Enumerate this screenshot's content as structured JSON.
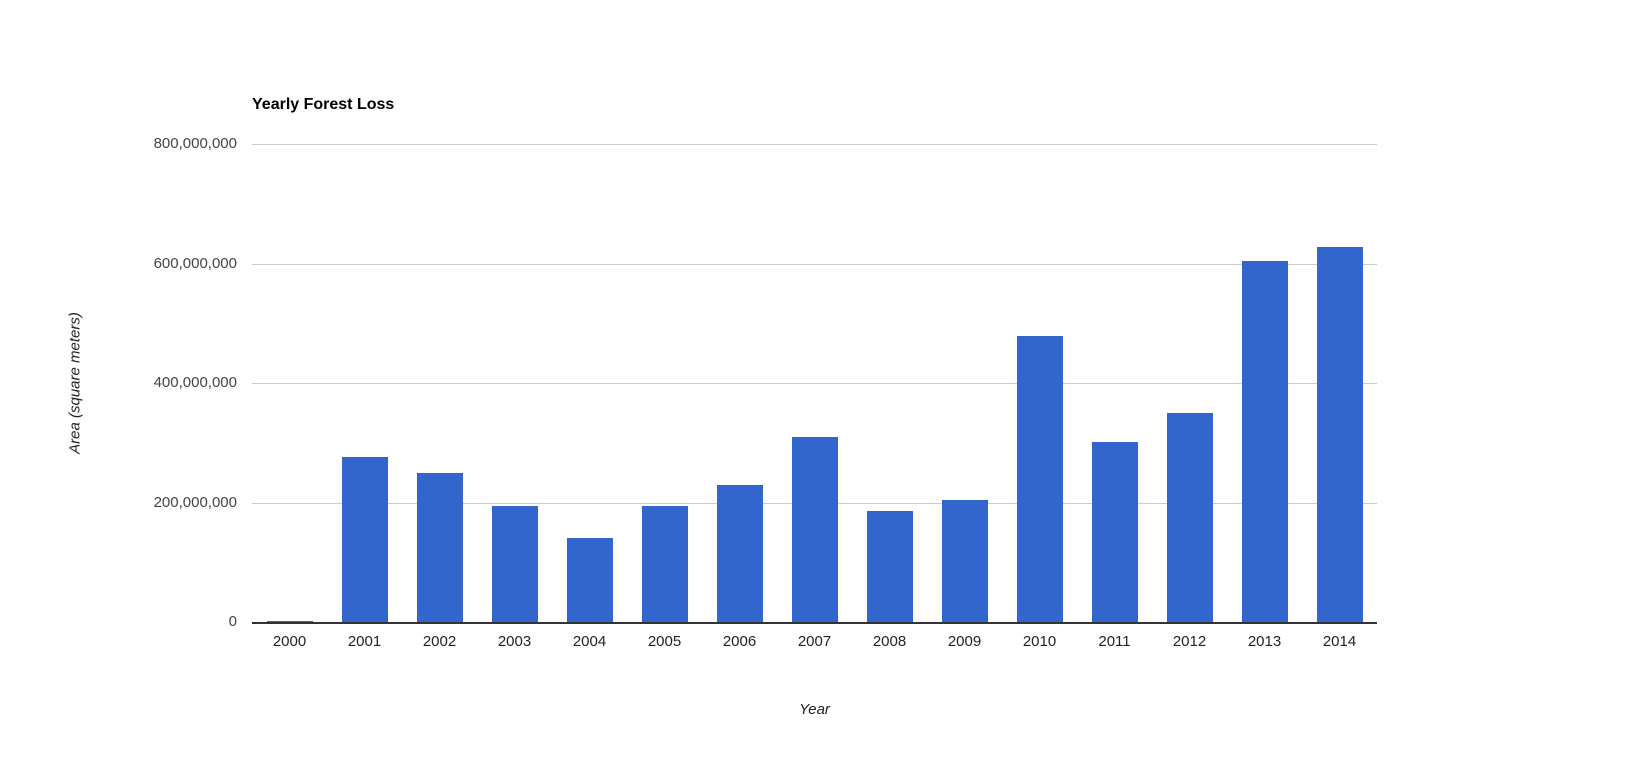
{
  "chart_data": {
    "type": "bar",
    "title": "Yearly Forest Loss",
    "xlabel": "Year",
    "ylabel": "Area (square meters)",
    "categories": [
      "2000",
      "2001",
      "2002",
      "2003",
      "2004",
      "2005",
      "2006",
      "2007",
      "2008",
      "2009",
      "2010",
      "2011",
      "2012",
      "2013",
      "2014"
    ],
    "values": [
      2000000,
      277000000,
      249000000,
      194000000,
      141000000,
      194000000,
      230000000,
      310000000,
      186000000,
      205000000,
      479000000,
      301000000,
      349000000,
      604000000,
      627000000
    ],
    "ylim": [
      0,
      800000000
    ],
    "yticks": [
      {
        "value": 0,
        "label": "0"
      },
      {
        "value": 200000000,
        "label": "200,000,000"
      },
      {
        "value": 400000000,
        "label": "400,000,000"
      },
      {
        "value": 600000000,
        "label": "600,000,000"
      },
      {
        "value": 800000000,
        "label": "800,000,000"
      }
    ],
    "grid": true,
    "legend": "none",
    "colors": {
      "bar": "#3366cc",
      "gridline": "#cccccc",
      "axis_line": "#333333",
      "y_tick_text": "#444444",
      "x_tick_text": "#222222",
      "axis_title_text": "#222222",
      "title_text": "#000000",
      "background": "#ffffff"
    }
  }
}
